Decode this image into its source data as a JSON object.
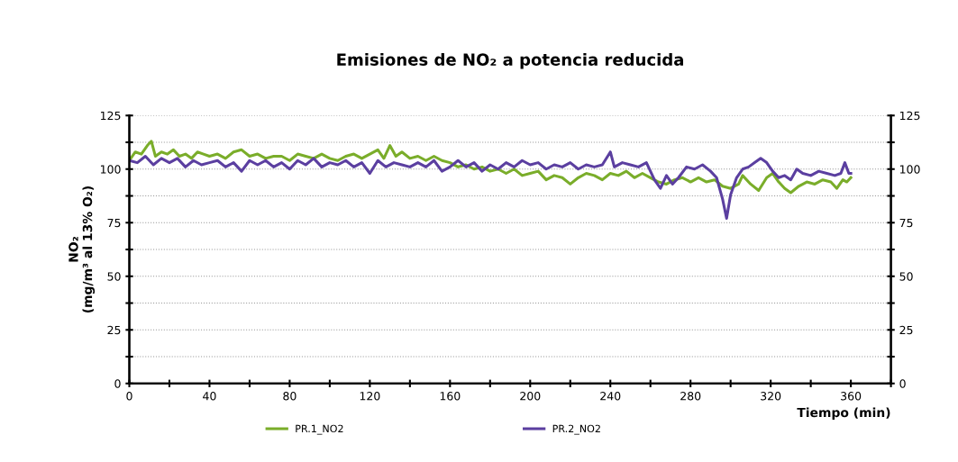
{
  "chart_data": {
    "type": "line",
    "title": "Emisiones de NO₂ a potencia reducida",
    "xlabel": "Tiempo (min)",
    "ylabel": "NO₂\n(mg/m³ al 13% O₂)",
    "xlim": [
      0,
      380
    ],
    "xticks": [
      0,
      {
        "value": 20,
        "label": null
      },
      40,
      {
        "value": 60,
        "label": null
      },
      80,
      {
        "value": 100,
        "label": null
      },
      120,
      {
        "value": 140,
        "label": null
      },
      160,
      {
        "value": 180,
        "label": null
      },
      200,
      {
        "value": 220,
        "label": null
      },
      240,
      {
        "value": 260,
        "label": null
      },
      280,
      {
        "value": 300,
        "label": null
      },
      320,
      {
        "value": 340,
        "label": null
      },
      360,
      {
        "value": 380,
        "label": null
      }
    ],
    "ylim": [
      0,
      125
    ],
    "yticks": [
      0,
      {
        "value": 12.5,
        "label": null
      },
      25,
      {
        "value": 37.5,
        "label": null
      },
      50,
      {
        "value": 62.5,
        "label": null
      },
      75,
      {
        "value": 87.5,
        "label": null
      },
      100,
      {
        "value": 112.5,
        "label": null
      },
      125
    ],
    "y2lim": [
      0,
      125
    ],
    "y2ticks": [
      0,
      {
        "value": 12.5,
        "label": null
      },
      25,
      {
        "value": 37.5,
        "label": null
      },
      50,
      {
        "value": 62.5,
        "label": null
      },
      75,
      {
        "value": 87.5,
        "label": null
      },
      100,
      {
        "value": 112.5,
        "label": null
      },
      125
    ],
    "grid": "y",
    "legend": "bottom",
    "marker": "none",
    "line_style": "solid",
    "series": [
      {
        "name": "PR.1_NO2",
        "color": "#7aad2a",
        "x": [
          0,
          3,
          6,
          9,
          11,
          13,
          16,
          19,
          22,
          25,
          28,
          31,
          34,
          37,
          40,
          44,
          48,
          52,
          56,
          60,
          64,
          68,
          72,
          76,
          80,
          84,
          88,
          92,
          96,
          100,
          104,
          108,
          112,
          116,
          120,
          124,
          127,
          130,
          133,
          136,
          140,
          144,
          148,
          152,
          156,
          160,
          164,
          168,
          172,
          176,
          180,
          184,
          188,
          192,
          196,
          200,
          204,
          208,
          212,
          216,
          220,
          224,
          228,
          232,
          236,
          240,
          244,
          248,
          252,
          256,
          260,
          264,
          268,
          272,
          276,
          280,
          284,
          288,
          292,
          296,
          300,
          304,
          306,
          310,
          314,
          318,
          321,
          324,
          327,
          330,
          334,
          338,
          342,
          346,
          350,
          353,
          356,
          358,
          360
        ],
        "values": [
          104,
          108,
          107,
          111,
          113,
          106,
          108,
          107,
          109,
          106,
          107,
          105,
          108,
          107,
          106,
          107,
          105,
          108,
          109,
          106,
          107,
          105,
          106,
          106,
          104,
          107,
          106,
          105,
          107,
          105,
          104,
          106,
          107,
          105,
          107,
          109,
          105,
          111,
          106,
          108,
          105,
          106,
          104,
          106,
          104,
          103,
          101,
          102,
          100,
          101,
          99,
          100,
          98,
          100,
          97,
          98,
          99,
          95,
          97,
          96,
          93,
          96,
          98,
          97,
          95,
          98,
          97,
          99,
          96,
          98,
          96,
          94,
          93,
          95,
          96,
          94,
          96,
          94,
          95,
          92,
          91,
          93,
          97,
          93,
          90,
          96,
          98,
          94,
          91,
          89,
          92,
          94,
          93,
          95,
          94,
          91,
          95,
          94,
          96
        ]
      },
      {
        "name": "PR.2_NO2",
        "color": "#5b3fa0",
        "x": [
          0,
          4,
          8,
          12,
          16,
          20,
          24,
          28,
          32,
          36,
          40,
          44,
          48,
          52,
          56,
          60,
          64,
          68,
          72,
          76,
          80,
          84,
          88,
          92,
          96,
          100,
          104,
          108,
          112,
          116,
          120,
          124,
          128,
          132,
          136,
          140,
          144,
          148,
          152,
          156,
          160,
          164,
          168,
          172,
          176,
          180,
          184,
          188,
          192,
          196,
          200,
          204,
          208,
          212,
          216,
          220,
          224,
          228,
          232,
          236,
          240,
          242,
          246,
          250,
          254,
          258,
          262,
          265,
          268,
          271,
          274,
          278,
          282,
          286,
          290,
          293,
          296,
          298,
          300,
          303,
          306,
          309,
          312,
          315,
          318,
          321,
          324,
          327,
          330,
          333,
          336,
          340,
          344,
          348,
          352,
          355,
          357,
          359,
          360
        ],
        "values": [
          104,
          103,
          106,
          102,
          105,
          103,
          105,
          101,
          104,
          102,
          103,
          104,
          101,
          103,
          99,
          104,
          102,
          104,
          101,
          103,
          100,
          104,
          102,
          105,
          101,
          103,
          102,
          104,
          101,
          103,
          98,
          104,
          101,
          103,
          102,
          101,
          103,
          101,
          104,
          99,
          101,
          104,
          101,
          103,
          99,
          102,
          100,
          103,
          101,
          104,
          102,
          103,
          100,
          102,
          101,
          103,
          100,
          102,
          101,
          102,
          108,
          101,
          103,
          102,
          101,
          103,
          95,
          91,
          97,
          93,
          96,
          101,
          100,
          102,
          99,
          96,
          86,
          77,
          88,
          96,
          100,
          101,
          103,
          105,
          103,
          99,
          96,
          97,
          95,
          100,
          98,
          97,
          99,
          98,
          97,
          98,
          103,
          98,
          98
        ]
      }
    ]
  }
}
